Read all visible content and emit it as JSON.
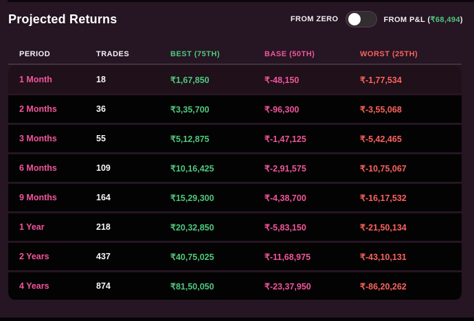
{
  "header": {
    "title": "Projected Returns",
    "toggle": {
      "left_label": "FROM ZERO",
      "right_label_prefix": "FROM P&L (",
      "right_value": "₹68,494",
      "right_label_suffix": ")",
      "state": "left"
    }
  },
  "table": {
    "columns": [
      "PERIOD",
      "TRADES",
      "BEST (75TH)",
      "BASE (50TH)",
      "WORST (25TH)"
    ],
    "highlighted_row": "1 Month",
    "rows": [
      {
        "period": "1 Month",
        "trades": "18",
        "best": "₹1,67,850",
        "base": "₹-48,150",
        "worst": "₹-1,77,534"
      },
      {
        "period": "2 Months",
        "trades": "36",
        "best": "₹3,35,700",
        "base": "₹-96,300",
        "worst": "₹-3,55,068"
      },
      {
        "period": "3 Months",
        "trades": "55",
        "best": "₹5,12,875",
        "base": "₹-1,47,125",
        "worst": "₹-5,42,465"
      },
      {
        "period": "6 Months",
        "trades": "109",
        "best": "₹10,16,425",
        "base": "₹-2,91,575",
        "worst": "₹-10,75,067"
      },
      {
        "period": "9 Months",
        "trades": "164",
        "best": "₹15,29,300",
        "base": "₹-4,38,700",
        "worst": "₹-16,17,532"
      },
      {
        "period": "1 Year",
        "trades": "218",
        "best": "₹20,32,850",
        "base": "₹-5,83,150",
        "worst": "₹-21,50,134"
      },
      {
        "period": "2 Years",
        "trades": "437",
        "best": "₹40,75,025",
        "base": "₹-11,68,975",
        "worst": "₹-43,10,131"
      },
      {
        "period": "4 Years",
        "trades": "874",
        "best": "₹81,50,050",
        "base": "₹-23,37,950",
        "worst": "₹-86,20,262"
      }
    ]
  },
  "colors": {
    "background": "#261523",
    "row_background": "#040304",
    "row_highlight": "#1f1019",
    "pink": "#f0559b",
    "green": "#4ec97d",
    "red": "#fa625c",
    "white": "#f5f3f4"
  }
}
